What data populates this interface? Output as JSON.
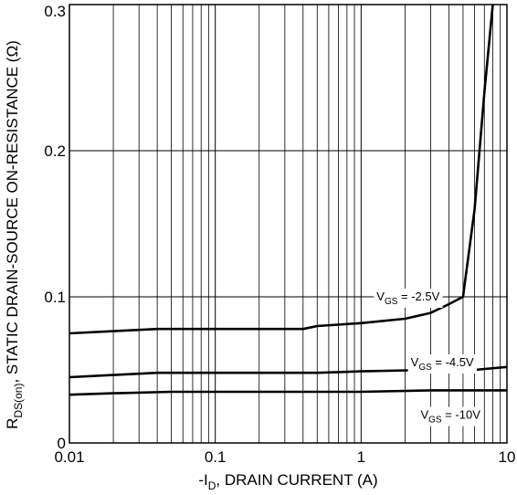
{
  "chart_data": {
    "type": "line",
    "xscale": "log",
    "xlim": [
      0.01,
      10
    ],
    "ylim": [
      0,
      0.3
    ],
    "grid": true,
    "xlabel": {
      "prefix": "-I",
      "sub": "D",
      "suffix": ", DRAIN CURRENT (A)"
    },
    "ylabel": {
      "prefix": "R",
      "sub": "DS(on)",
      "suffix": ", STATIC DRAIN-SOURCE ON-RESISTANCE (Ω)"
    },
    "x_ticks": [
      {
        "value": 0.01,
        "label": "0.01"
      },
      {
        "value": 0.1,
        "label": "0.1"
      },
      {
        "value": 1,
        "label": "1"
      },
      {
        "value": 10,
        "label": "10"
      }
    ],
    "y_ticks": [
      {
        "value": 0,
        "label": "0"
      },
      {
        "value": 0.1,
        "label": "0.1"
      },
      {
        "value": 0.2,
        "label": "0.2"
      },
      {
        "value": 0.3,
        "label": "0.3"
      }
    ],
    "series": [
      {
        "label": {
          "prefix": "V",
          "sub": "GS",
          "suffix": " = -2.5V"
        },
        "label_at": {
          "x": 2.1,
          "y": 0.1
        },
        "x": [
          0.01,
          0.02,
          0.04,
          0.1,
          0.2,
          0.4,
          0.5,
          1,
          2,
          3,
          4,
          5,
          6,
          7,
          8,
          9
        ],
        "y": [
          0.075,
          0.0765,
          0.078,
          0.078,
          0.078,
          0.078,
          0.08,
          0.082,
          0.085,
          0.089,
          0.095,
          0.1,
          0.16,
          0.24,
          0.3,
          0.33
        ]
      },
      {
        "label": {
          "prefix": "V",
          "sub": "GS",
          "suffix": " = -4.5V"
        },
        "label_at": {
          "x": 3.6,
          "y": 0.055
        },
        "x": [
          0.01,
          0.02,
          0.04,
          0.1,
          0.5,
          1,
          3,
          6,
          10
        ],
        "y": [
          0.045,
          0.0465,
          0.048,
          0.048,
          0.048,
          0.049,
          0.05,
          0.05,
          0.052
        ]
      },
      {
        "label": {
          "prefix": "V",
          "sub": "GS",
          "suffix": " = -10V"
        },
        "label_at": {
          "x": 4.1,
          "y": 0.019
        },
        "x": [
          0.01,
          0.02,
          0.05,
          0.1,
          1,
          3,
          6,
          10
        ],
        "y": [
          0.033,
          0.034,
          0.035,
          0.035,
          0.035,
          0.036,
          0.036,
          0.036
        ]
      }
    ]
  }
}
